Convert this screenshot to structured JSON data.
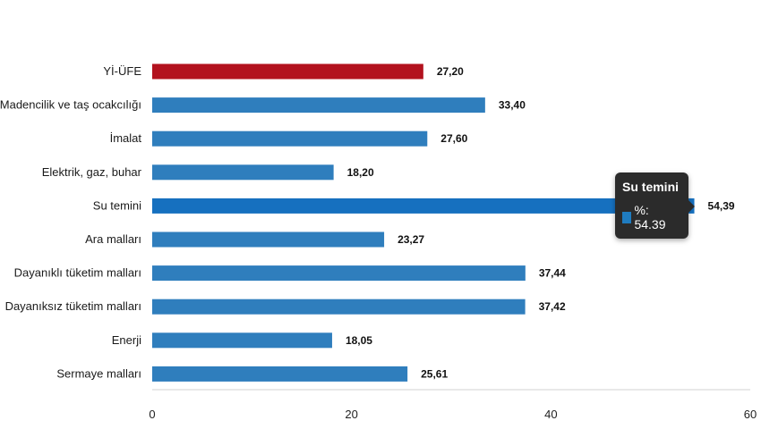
{
  "chart_data": {
    "type": "bar",
    "orientation": "horizontal",
    "categories": [
      "Yİ-ÜFE",
      "Madencilik ve taş ocakcılığı",
      "İmalat",
      "Elektrik, gaz, buhar",
      "Su temini",
      "Ara malları",
      "Dayanıklı tüketim malları",
      "Dayanıksız tüketim malları",
      "Enerji",
      "Sermaye malları"
    ],
    "values": [
      27.2,
      33.4,
      27.6,
      18.2,
      54.39,
      23.27,
      37.44,
      37.42,
      18.05,
      25.61
    ],
    "value_labels": [
      "27,20",
      "33,40",
      "27,60",
      "18,20",
      "54,39",
      "23,27",
      "37,44",
      "37,42",
      "18,05",
      "25,61"
    ],
    "colors": [
      "#b3121e",
      "#2f7ebd",
      "#2f7ebd",
      "#2f7ebd",
      "#1670bf",
      "#2f7ebd",
      "#2f7ebd",
      "#2f7ebd",
      "#2f7ebd",
      "#2f7ebd"
    ],
    "xlim": [
      0,
      60
    ],
    "xticks": [
      "0",
      "20",
      "40",
      "60"
    ],
    "title": "",
    "xlabel": "",
    "ylabel": "",
    "grid": false,
    "legend": "none"
  },
  "tooltip": {
    "title": "Su temini",
    "value_text": "%: 54.39",
    "swatch_color": "#1f7cc0"
  }
}
